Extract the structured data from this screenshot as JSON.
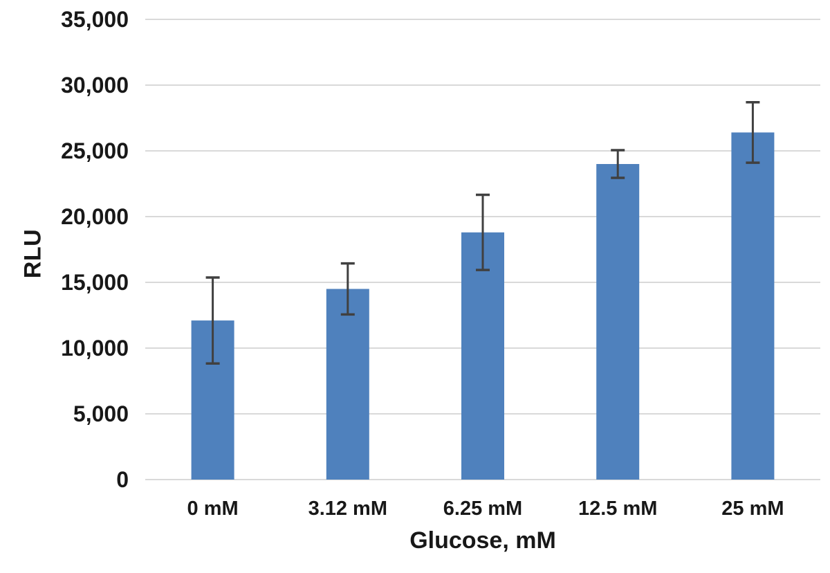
{
  "chart_data": {
    "type": "bar",
    "title": "",
    "xlabel": "Glucose, mM",
    "ylabel": "RLU",
    "categories": [
      "0 mM",
      "3.12 mM",
      "6.25 mM",
      "12.5 mM",
      "25 mM"
    ],
    "values": [
      12100,
      14500,
      18800,
      24000,
      26400
    ],
    "error_bars": [
      3270,
      1940,
      2860,
      1050,
      2300
    ],
    "ylim": [
      0,
      35000
    ],
    "ytick_step": 5000,
    "ytick_labels": [
      "0",
      "5,000",
      "10,000",
      "15,000",
      "20,000",
      "25,000",
      "30,000",
      "35,000"
    ],
    "grid": true,
    "legend": "none",
    "bar_color": "#4F81BD",
    "error_bar_color": "#404040",
    "gridline_color": "#D9D9D9",
    "text_color": "#181818",
    "background": "#FFFFFF"
  }
}
